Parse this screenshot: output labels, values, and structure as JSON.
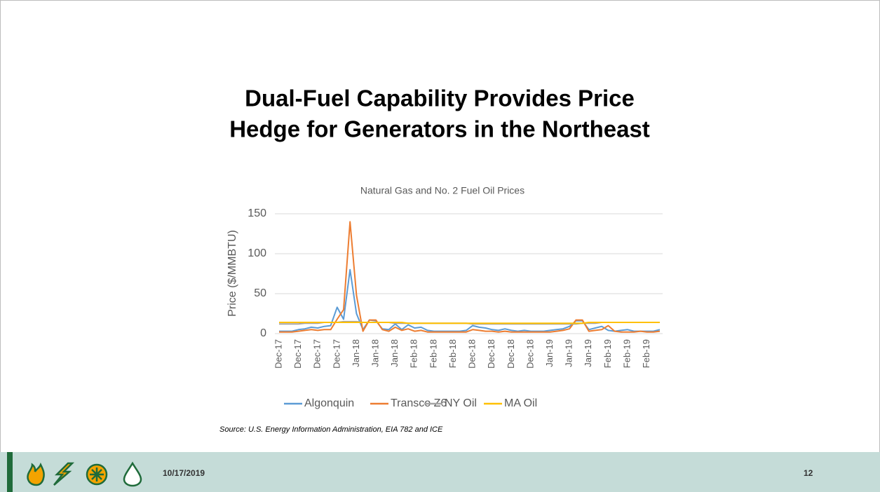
{
  "slide_title": [
    "Dual-Fuel Capability Provides Price",
    "Hedge for Generators in the Northeast"
  ],
  "chart_data": {
    "type": "line",
    "title": "Natural Gas and No. 2 Fuel Oil Prices",
    "y_label": "Price ($/MMBTU)",
    "categories": [
      "Dec-17",
      null,
      null,
      "Dec-17",
      null,
      null,
      "Dec-17",
      null,
      null,
      "Dec-17",
      null,
      null,
      "Jan-18",
      null,
      null,
      "Jan-18",
      null,
      null,
      "Jan-18",
      null,
      null,
      "Feb-18",
      null,
      null,
      "Feb-18",
      null,
      null,
      "Feb-18",
      null,
      null,
      "Dec-18",
      null,
      null,
      "Dec-18",
      null,
      null,
      "Dec-18",
      null,
      null,
      "Dec-18",
      null,
      null,
      "Jan-19",
      null,
      null,
      "Jan-19",
      null,
      null,
      "Jan-19",
      null,
      null,
      "Feb-19",
      null,
      null,
      "Feb-19",
      null,
      null,
      "Feb-19",
      null,
      null
    ],
    "series": [
      {
        "name": "Algonquin",
        "color": "#5b9bd5",
        "values": [
          3,
          3,
          3,
          5,
          6,
          8,
          7,
          9,
          10,
          33,
          18,
          80,
          25,
          5,
          17,
          16,
          6,
          5,
          12,
          5,
          11,
          7,
          8,
          4,
          3,
          3,
          3,
          3,
          3,
          4,
          10,
          8,
          7,
          5,
          4,
          6,
          4,
          3,
          4,
          3,
          3,
          3,
          4,
          5,
          6,
          9,
          16,
          16,
          5,
          7,
          9,
          4,
          3,
          4,
          5,
          3,
          3,
          3,
          3,
          5
        ]
      },
      {
        "name": "Transco Z6",
        "color": "#ed7d31",
        "values": [
          2,
          2,
          2,
          3,
          4,
          5,
          4,
          5,
          5,
          18,
          30,
          140,
          48,
          3,
          17,
          17,
          5,
          3,
          8,
          4,
          6,
          3,
          4,
          2,
          2,
          2,
          2,
          2,
          2,
          2,
          5,
          4,
          3,
          3,
          2,
          3,
          2,
          2,
          2,
          2,
          2,
          2,
          2,
          3,
          4,
          6,
          17,
          17,
          3,
          4,
          5,
          10,
          3,
          2,
          2,
          2,
          3,
          2,
          2,
          3
        ]
      },
      {
        "name": "NY Oil",
        "color": "#a5a5a5",
        "values": [
          12,
          12,
          12,
          12,
          13,
          13,
          13,
          14,
          14,
          14,
          15,
          15,
          15,
          14,
          14,
          14,
          14,
          14,
          13,
          13,
          13,
          13,
          13,
          13,
          13,
          13,
          13,
          13,
          13,
          13,
          12,
          12,
          12,
          12,
          12,
          12,
          12,
          12,
          12,
          12,
          12,
          12,
          12,
          12,
          12,
          12,
          12,
          13,
          13,
          13,
          14,
          14,
          14,
          14,
          14,
          14,
          14,
          14,
          14,
          14
        ]
      },
      {
        "name": "MA Oil",
        "color": "#ffc000",
        "values": [
          14,
          14,
          14,
          14,
          14,
          14,
          14,
          14,
          14,
          14,
          14,
          14,
          14,
          14,
          14,
          14,
          14,
          14,
          14,
          14,
          13,
          13,
          13,
          13,
          13,
          13,
          13,
          13,
          13,
          13,
          13,
          13,
          13,
          13,
          13,
          13,
          13,
          13,
          13,
          13,
          13,
          13,
          13,
          13,
          13,
          13,
          13,
          13,
          14,
          14,
          14,
          14,
          14,
          14,
          14,
          14,
          14,
          14,
          14,
          14
        ]
      }
    ],
    "ylim": [
      0,
      150
    ],
    "yticks": [
      0,
      50,
      100,
      150
    ],
    "grid": true,
    "legend": "bottom"
  },
  "source": "Source: U.S. Energy Information Administration, EIA 782 and ICE",
  "footer": {
    "date": "10/17/2019",
    "page": "12"
  }
}
